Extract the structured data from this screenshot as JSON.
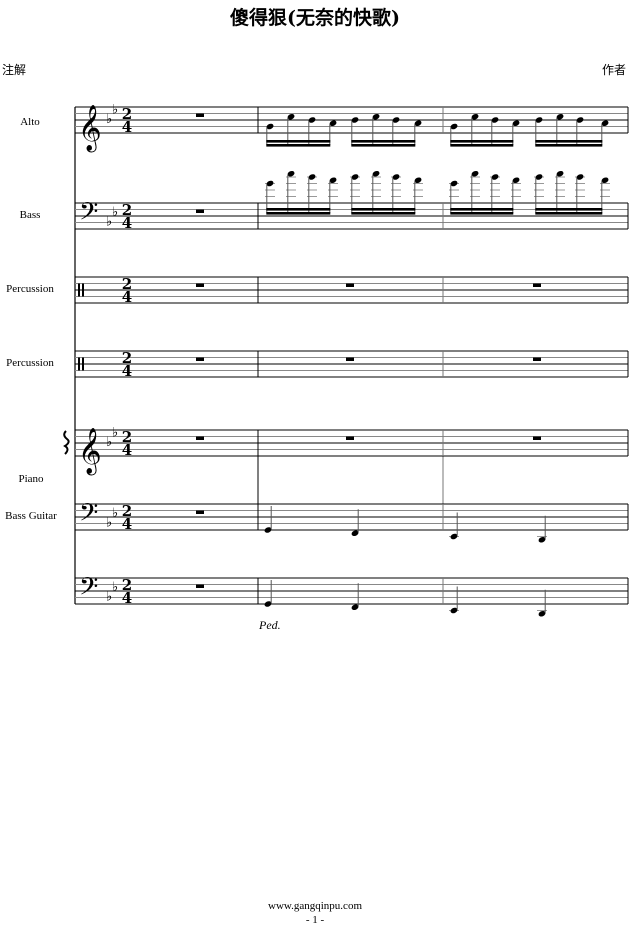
{
  "header": {
    "title": "傻得狠(无奈的快歌)",
    "annotation": "注解",
    "author": "作者"
  },
  "key_signature": [
    "Bb",
    "Eb"
  ],
  "time_signature": {
    "numerator": "2",
    "denominator": "4"
  },
  "staves": [
    {
      "label": "Alto",
      "clef": "treble",
      "measures": [
        {
          "rest": true
        },
        {
          "duration": "16th",
          "notes": [
            "G4",
            "C5",
            "Bb4",
            "A4",
            "Bb4",
            "C5",
            "Bb4",
            "A4"
          ]
        },
        {
          "duration": "16th",
          "notes": [
            "G4",
            "C5",
            "Bb4",
            "A4",
            "Bb4",
            "C5",
            "Bb4",
            "A4"
          ]
        }
      ]
    },
    {
      "label": "Bass",
      "clef": "bass",
      "measures": [
        {
          "rest": true
        },
        {
          "duration": "16th",
          "notes": [
            "G4",
            "C5",
            "Bb4",
            "A4",
            "Bb4",
            "C5",
            "Bb4",
            "A4"
          ]
        },
        {
          "duration": "16th",
          "notes": [
            "G4",
            "C5",
            "Bb4",
            "A4",
            "Bb4",
            "C5",
            "Bb4",
            "A4"
          ]
        }
      ]
    },
    {
      "label": "Percussion",
      "clef": "percussion",
      "measures": [
        {
          "rest": true
        },
        {
          "rest": true
        },
        {
          "rest": true
        }
      ]
    },
    {
      "label": "Percussion",
      "clef": "percussion",
      "measures": [
        {
          "rest": true
        },
        {
          "rest": true
        },
        {
          "rest": true
        }
      ]
    },
    {
      "label": "",
      "clef": "treble",
      "measures": [
        {
          "rest": true
        },
        {
          "rest": true
        },
        {
          "rest": true
        }
      ]
    },
    {
      "label": "Bass Guitar",
      "clef": "bass",
      "measures": [
        {
          "rest": true
        },
        {
          "duration": "quarter",
          "notes": [
            "G2",
            "F2"
          ]
        },
        {
          "duration": "quarter",
          "notes": [
            "Eb2",
            "D2"
          ]
        }
      ]
    },
    {
      "label": "",
      "clef": "bass",
      "measures": [
        {
          "rest": true
        },
        {
          "duration": "quarter",
          "notes": [
            "G2",
            "F2"
          ]
        },
        {
          "duration": "quarter",
          "notes": [
            "Eb2",
            "D2"
          ]
        }
      ]
    }
  ],
  "piano_label": "Piano",
  "pedal_mark": "Ped.",
  "footer": {
    "url": "www.gangqinpu.com",
    "page": "- 1 -"
  }
}
